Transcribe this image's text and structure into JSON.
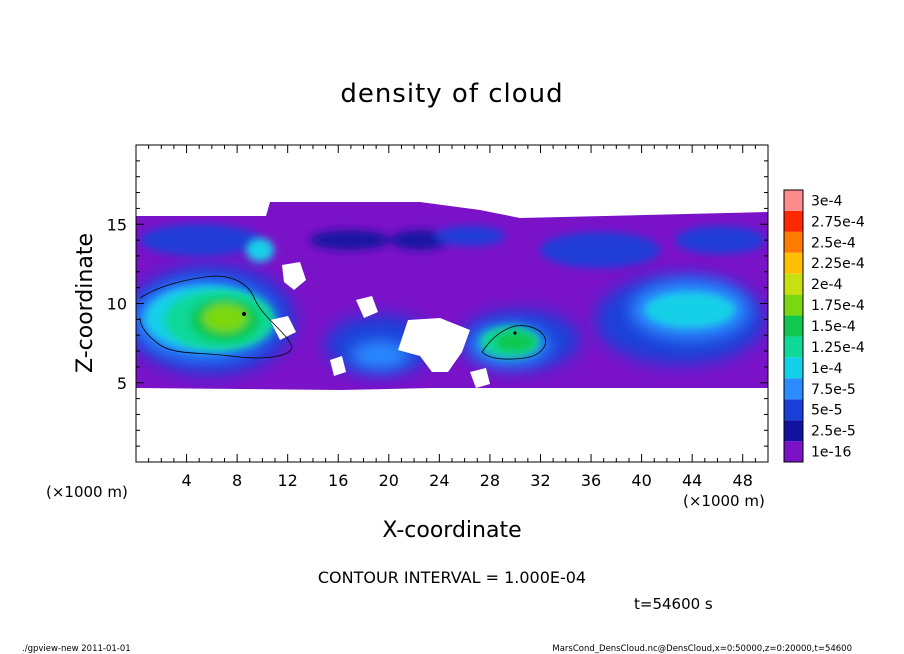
{
  "chart_data": {
    "type": "heatmap",
    "title": "density of cloud",
    "xlabel": "X-coordinate",
    "ylabel": "Z-coordinate",
    "x_unit": "(×1000 m)",
    "x_unit_right": "(×1000 m)",
    "xlim": [
      0,
      50
    ],
    "ylim": [
      0,
      20
    ],
    "x_ticks": [
      4,
      8,
      12,
      16,
      20,
      24,
      28,
      32,
      36,
      40,
      44,
      48
    ],
    "y_ticks": [
      5,
      10,
      15
    ],
    "contour_interval_text": "CONTOUR INTERVAL = 1.000E-04",
    "time_label": "t=54600 s",
    "colorbar": {
      "levels": [
        "1e-16",
        "2.5e-5",
        "5e-5",
        "7.5e-5",
        "1e-4",
        "1.25e-4",
        "1.5e-4",
        "1.75e-4",
        "2e-4",
        "2.25e-4",
        "2.5e-4",
        "2.75e-4",
        "3e-4"
      ],
      "colors": [
        "#7a12c8",
        "#1212a0",
        "#1a3fd8",
        "#2a8cff",
        "#12d0e8",
        "#10d898",
        "#10c850",
        "#7ad810",
        "#c8e010",
        "#ffc000",
        "#ff7a00",
        "#ff2800",
        "#ff8c8c"
      ]
    },
    "cloud_band": {
      "z_bottom": 4.8,
      "z_top": 15.6
    },
    "green_regions": [
      {
        "x_center": 7,
        "z_center": 9,
        "max_density": "1.5e-4"
      },
      {
        "x_center": 30,
        "z_center": 8,
        "max_density": "1.5e-4"
      }
    ]
  },
  "footer": {
    "left": "./gpview-new   2011-01-01",
    "right": "MarsCond_DensCloud.nc@DensCloud,x=0:50000,z=0:20000,t=54600"
  }
}
